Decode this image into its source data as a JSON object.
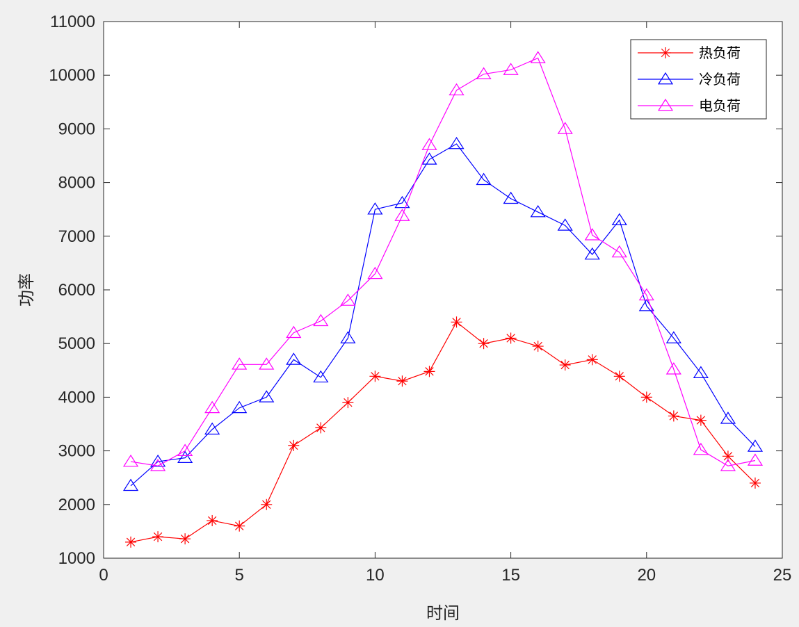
{
  "chart_data": {
    "type": "line",
    "title": "",
    "xlabel": "时间",
    "ylabel": "功率",
    "xlim": [
      0,
      25
    ],
    "ylim": [
      1000,
      11000
    ],
    "xticks": [
      0,
      5,
      10,
      15,
      20,
      25
    ],
    "yticks": [
      1000,
      2000,
      3000,
      4000,
      5000,
      6000,
      7000,
      8000,
      9000,
      10000,
      11000
    ],
    "grid": false,
    "legend_position": "top-right",
    "x": [
      1,
      2,
      3,
      4,
      5,
      6,
      7,
      8,
      9,
      10,
      11,
      12,
      13,
      14,
      15,
      16,
      17,
      18,
      19,
      20,
      21,
      22,
      23,
      24
    ],
    "series": [
      {
        "name": "热负荷",
        "color": "#ff0000",
        "marker": "asterisk",
        "values": [
          1300,
          1400,
          1360,
          1700,
          1600,
          2000,
          3100,
          3430,
          3900,
          4390,
          4300,
          4480,
          5400,
          5000,
          5100,
          4950,
          4600,
          4700,
          4390,
          4000,
          3650,
          3570,
          2900,
          2400
        ]
      },
      {
        "name": "冷负荷",
        "color": "#0000ff",
        "marker": "triangle",
        "values": [
          2350,
          2800,
          2870,
          3400,
          3800,
          4000,
          4700,
          4370,
          5100,
          7500,
          7620,
          8430,
          8720,
          8050,
          7700,
          7450,
          7200,
          6660,
          7300,
          5700,
          5100,
          4450,
          3600,
          3080
        ]
      },
      {
        "name": "电负荷",
        "color": "#ff00ff",
        "marker": "triangle",
        "values": [
          2800,
          2720,
          3000,
          3800,
          4610,
          4610,
          5200,
          5420,
          5800,
          6300,
          7380,
          8700,
          9720,
          10020,
          10100,
          10320,
          9000,
          7020,
          6700,
          5900,
          4520,
          3020,
          2720,
          2820
        ]
      }
    ]
  }
}
